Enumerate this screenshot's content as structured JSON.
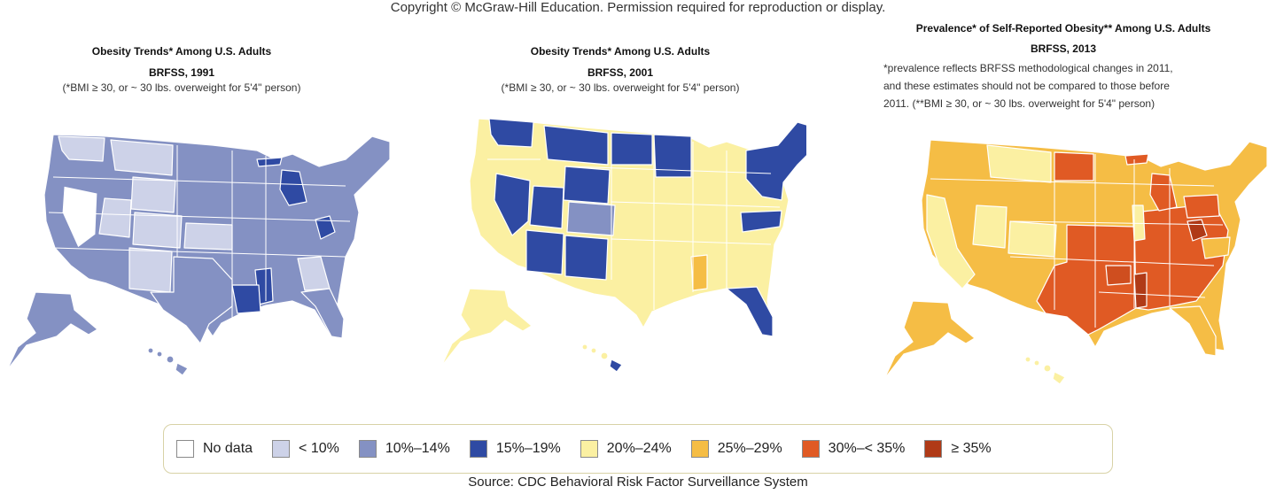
{
  "copyright": "Copyright © McGraw-Hill Education. Permission required for reproduction or display.",
  "maps": [
    {
      "title": "Obesity Trends* Among U.S. Adults",
      "subtitle": "BRFSS, 1991",
      "note": "(*BMI ≥ 30, or ~ 30 lbs. overweight for 5'4\" person)",
      "colors": {
        "base": "#8491c3",
        "light": "#cdd2e8",
        "dark": "#2f4aa3",
        "yellow": "#fbf0a2"
      }
    },
    {
      "title": "Obesity Trends* Among U.S. Adults",
      "subtitle": "BRFSS, 2001",
      "note": "(*BMI ≥ 30, or ~ 30 lbs. overweight for 5'4\" person)",
      "colors": {
        "base": "#fbf0a2",
        "dark": "#2f4aa3",
        "mid": "#8491c3",
        "orange": "#f5bd45"
      }
    },
    {
      "title": "Prevalence* of Self-Reported Obesity** Among U.S. Adults",
      "subtitle": "BRFSS, 2013",
      "note_lines": [
        "*prevalence reflects BRFSS methodological changes in 2011,",
        "and these estimates should not be compared to those before",
        "2011. (**BMI ≥ 30, or ~ 30 lbs. overweight for 5'4\" person)"
      ],
      "colors": {
        "base": "#f5bd45",
        "red": "#e05a24",
        "light": "#fbf0a2",
        "dark": "#b03a17"
      }
    }
  ],
  "legend": [
    {
      "label": "No data",
      "color": "#ffffff"
    },
    {
      "label": "< 10%",
      "color": "#cdd2e8"
    },
    {
      "label": "10%–14%",
      "color": "#8491c3"
    },
    {
      "label": "15%–19%",
      "color": "#2f4aa3"
    },
    {
      "label": "20%–24%",
      "color": "#fbf0a2"
    },
    {
      "label": "25%–29%",
      "color": "#f5bd45"
    },
    {
      "label": "30%–< 35%",
      "color": "#e05a24"
    },
    {
      "label": "≥ 35%",
      "color": "#b03a17"
    }
  ],
  "source": "Source: CDC Behavioral Risk Factor Surveillance System"
}
